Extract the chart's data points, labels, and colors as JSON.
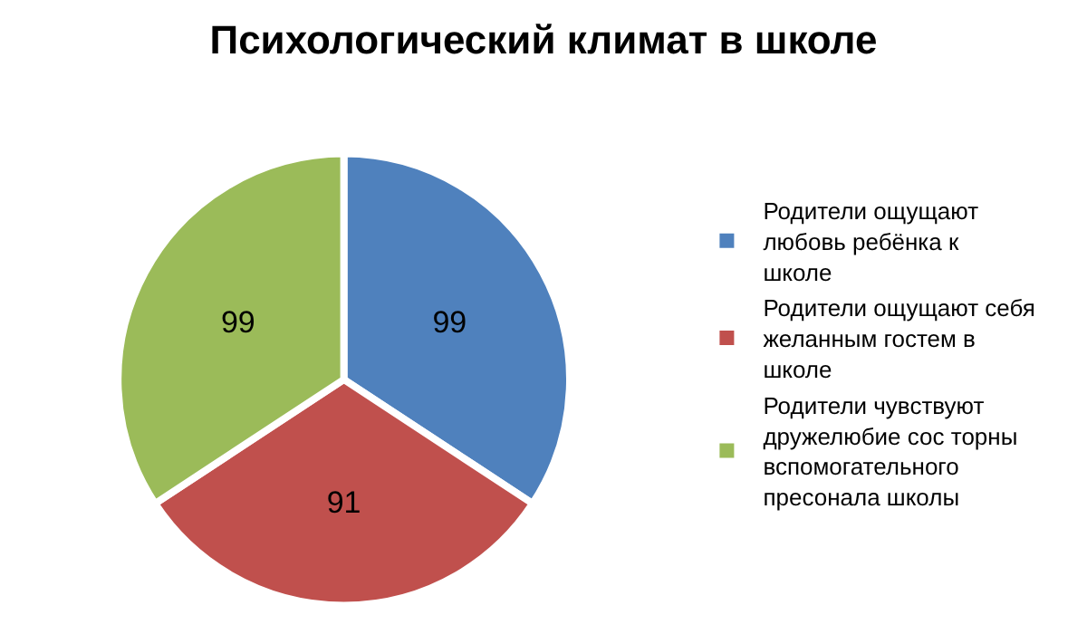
{
  "chart_data": {
    "type": "pie",
    "title": "Психологический климат в школе",
    "categories": [
      "Родители ощущают любовь ребёнка к школе",
      "Родители ощущают себя желанным гостем в школе",
      "Родители чувствуют дружелюбие сос торны вспомогательного пресонала школы"
    ],
    "values": [
      99,
      91,
      99
    ],
    "colors": [
      "#4f81bd",
      "#c0504d",
      "#9bbb59"
    ],
    "data_labels": true,
    "legend": "right"
  }
}
